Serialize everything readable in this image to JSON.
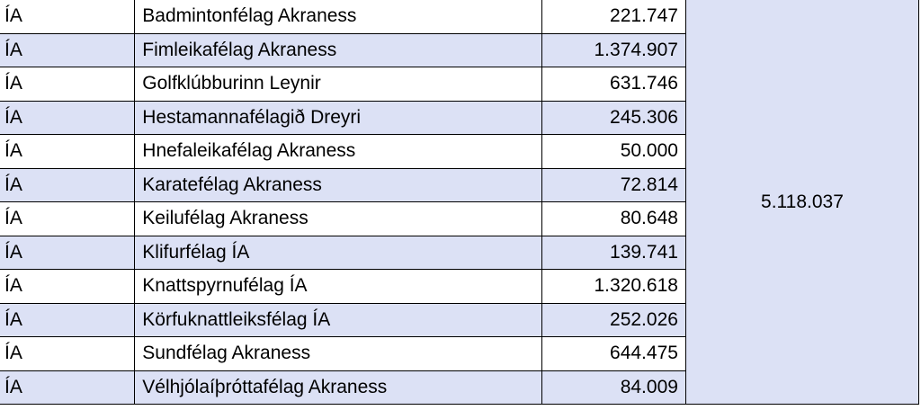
{
  "table": {
    "rows": [
      {
        "code": "ÍA",
        "club": "Badmintonfélag Akraness",
        "amount": "221.747"
      },
      {
        "code": "ÍA",
        "club": "Fimleikafélag Akraness",
        "amount": "1.374.907"
      },
      {
        "code": "ÍA",
        "club": "Golfklúbburinn Leynir",
        "amount": "631.746"
      },
      {
        "code": "ÍA",
        "club": "Hestamannafélagið Dreyri",
        "amount": "245.306"
      },
      {
        "code": "ÍA",
        "club": "Hnefaleikafélag Akraness",
        "amount": "50.000"
      },
      {
        "code": "ÍA",
        "club": "Karatefélag Akraness",
        "amount": "72.814"
      },
      {
        "code": "ÍA",
        "club": "Keilufélag Akraness",
        "amount": "80.648"
      },
      {
        "code": "ÍA",
        "club": "Klifurfélag ÍA",
        "amount": "139.741"
      },
      {
        "code": "ÍA",
        "club": "Knattspyrnufélag ÍA",
        "amount": "1.320.618"
      },
      {
        "code": "ÍA",
        "club": "Körfuknattleiksfélag ÍA",
        "amount": "252.026"
      },
      {
        "code": "ÍA",
        "club": "Sundfélag Akraness",
        "amount": "644.475"
      },
      {
        "code": "ÍA",
        "club": "Vélhjólaíþróttafélag Akraness",
        "amount": "84.009"
      }
    ],
    "total": "5.118.037",
    "band_color": "#dce1f5"
  }
}
